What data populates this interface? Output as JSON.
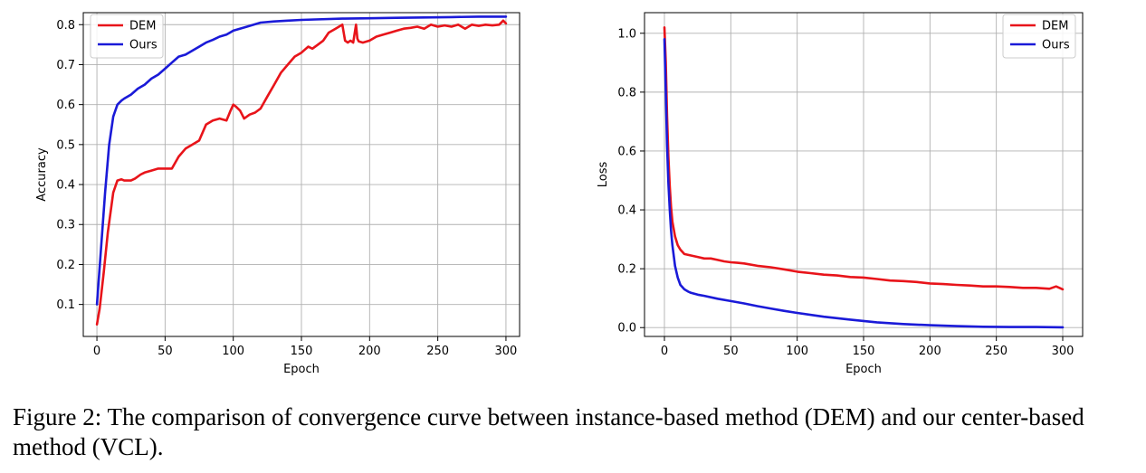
{
  "figure": {
    "caption": "Figure 2: The comparison of convergence curve between instance-based method (DEM) and our center-based method (VCL)."
  },
  "colors": {
    "DEM": "#e8141a",
    "Ours": "#1a1ad8",
    "grid": "#b0b0b0",
    "axis": "#000000"
  },
  "chart_data": [
    {
      "type": "line",
      "title": "",
      "xlabel": "Epoch",
      "ylabel": "Accuracy",
      "xlim": [
        -10,
        310
      ],
      "ylim": [
        0.02,
        0.83
      ],
      "xticks": [
        0,
        50,
        100,
        150,
        200,
        250,
        300
      ],
      "yticks": [
        0.1,
        0.2,
        0.3,
        0.4,
        0.5,
        0.6,
        0.7,
        0.8
      ],
      "ytick_labels": [
        "0.1",
        "0.2",
        "0.3",
        "0.4",
        "0.5",
        "0.6",
        "0.7",
        "0.8"
      ],
      "grid": true,
      "legend_position": "top-left",
      "series": [
        {
          "name": "DEM",
          "x": [
            0,
            2,
            5,
            8,
            12,
            15,
            18,
            20,
            25,
            28,
            32,
            35,
            40,
            45,
            50,
            55,
            60,
            65,
            70,
            75,
            80,
            85,
            90,
            95,
            98,
            100,
            102,
            105,
            108,
            112,
            116,
            120,
            125,
            130,
            135,
            140,
            145,
            150,
            155,
            158,
            162,
            166,
            170,
            175,
            180,
            182,
            184,
            186,
            188,
            190,
            191,
            192,
            195,
            200,
            205,
            210,
            215,
            220,
            225,
            230,
            235,
            240,
            245,
            250,
            255,
            260,
            265,
            270,
            275,
            280,
            285,
            290,
            295,
            298,
            300
          ],
          "values": [
            0.05,
            0.09,
            0.18,
            0.28,
            0.38,
            0.41,
            0.413,
            0.41,
            0.41,
            0.415,
            0.425,
            0.43,
            0.435,
            0.44,
            0.44,
            0.44,
            0.47,
            0.49,
            0.5,
            0.51,
            0.55,
            0.56,
            0.565,
            0.56,
            0.585,
            0.6,
            0.595,
            0.585,
            0.565,
            0.575,
            0.58,
            0.59,
            0.62,
            0.65,
            0.68,
            0.7,
            0.72,
            0.73,
            0.745,
            0.74,
            0.75,
            0.76,
            0.78,
            0.79,
            0.8,
            0.76,
            0.755,
            0.76,
            0.755,
            0.8,
            0.765,
            0.758,
            0.755,
            0.76,
            0.77,
            0.775,
            0.78,
            0.785,
            0.79,
            0.792,
            0.795,
            0.79,
            0.8,
            0.795,
            0.798,
            0.795,
            0.8,
            0.79,
            0.8,
            0.797,
            0.8,
            0.798,
            0.8,
            0.81,
            0.803
          ]
        },
        {
          "name": "Ours",
          "x": [
            0,
            3,
            6,
            9,
            12,
            15,
            18,
            20,
            25,
            30,
            35,
            40,
            45,
            50,
            55,
            60,
            65,
            70,
            75,
            80,
            85,
            90,
            95,
            100,
            110,
            120,
            130,
            140,
            150,
            160,
            180,
            200,
            220,
            240,
            260,
            280,
            300
          ],
          "values": [
            0.1,
            0.24,
            0.38,
            0.5,
            0.57,
            0.6,
            0.61,
            0.615,
            0.625,
            0.64,
            0.65,
            0.665,
            0.675,
            0.69,
            0.705,
            0.72,
            0.725,
            0.735,
            0.745,
            0.755,
            0.762,
            0.77,
            0.775,
            0.785,
            0.795,
            0.805,
            0.808,
            0.81,
            0.812,
            0.813,
            0.815,
            0.816,
            0.817,
            0.818,
            0.819,
            0.82,
            0.82
          ]
        }
      ]
    },
    {
      "type": "line",
      "title": "",
      "xlabel": "Epoch",
      "ylabel": "Loss",
      "xlim": [
        -15,
        315
      ],
      "ylim": [
        -0.03,
        1.07
      ],
      "xticks": [
        0,
        50,
        100,
        150,
        200,
        250,
        300
      ],
      "yticks": [
        0.0,
        0.2,
        0.4,
        0.6,
        0.8,
        1.0
      ],
      "ytick_labels": [
        "0.0",
        "0.2",
        "0.4",
        "0.6",
        "0.8",
        "1.0"
      ],
      "grid": true,
      "legend_position": "top-right",
      "series": [
        {
          "name": "DEM",
          "x": [
            0,
            1,
            2,
            3,
            4,
            5,
            6,
            8,
            10,
            12,
            15,
            20,
            25,
            30,
            35,
            40,
            45,
            50,
            55,
            60,
            70,
            80,
            90,
            100,
            110,
            120,
            130,
            140,
            150,
            160,
            170,
            180,
            190,
            200,
            210,
            220,
            230,
            240,
            250,
            260,
            270,
            280,
            290,
            295,
            300
          ],
          "values": [
            1.02,
            0.9,
            0.72,
            0.58,
            0.48,
            0.41,
            0.36,
            0.31,
            0.28,
            0.265,
            0.25,
            0.245,
            0.24,
            0.235,
            0.235,
            0.23,
            0.225,
            0.222,
            0.22,
            0.218,
            0.21,
            0.205,
            0.198,
            0.19,
            0.185,
            0.18,
            0.177,
            0.172,
            0.17,
            0.165,
            0.16,
            0.158,
            0.155,
            0.15,
            0.148,
            0.145,
            0.143,
            0.14,
            0.14,
            0.138,
            0.135,
            0.135,
            0.132,
            0.14,
            0.13
          ]
        },
        {
          "name": "Ours",
          "x": [
            0,
            1,
            2,
            3,
            4,
            5,
            6,
            8,
            10,
            12,
            15,
            18,
            20,
            25,
            30,
            40,
            50,
            60,
            70,
            80,
            90,
            100,
            120,
            140,
            160,
            180,
            200,
            220,
            240,
            260,
            280,
            300
          ],
          "values": [
            0.98,
            0.8,
            0.62,
            0.49,
            0.4,
            0.33,
            0.28,
            0.21,
            0.17,
            0.145,
            0.13,
            0.122,
            0.118,
            0.112,
            0.108,
            0.098,
            0.09,
            0.082,
            0.073,
            0.065,
            0.057,
            0.05,
            0.037,
            0.027,
            0.018,
            0.012,
            0.008,
            0.005,
            0.003,
            0.002,
            0.002,
            0.001
          ]
        }
      ]
    }
  ]
}
